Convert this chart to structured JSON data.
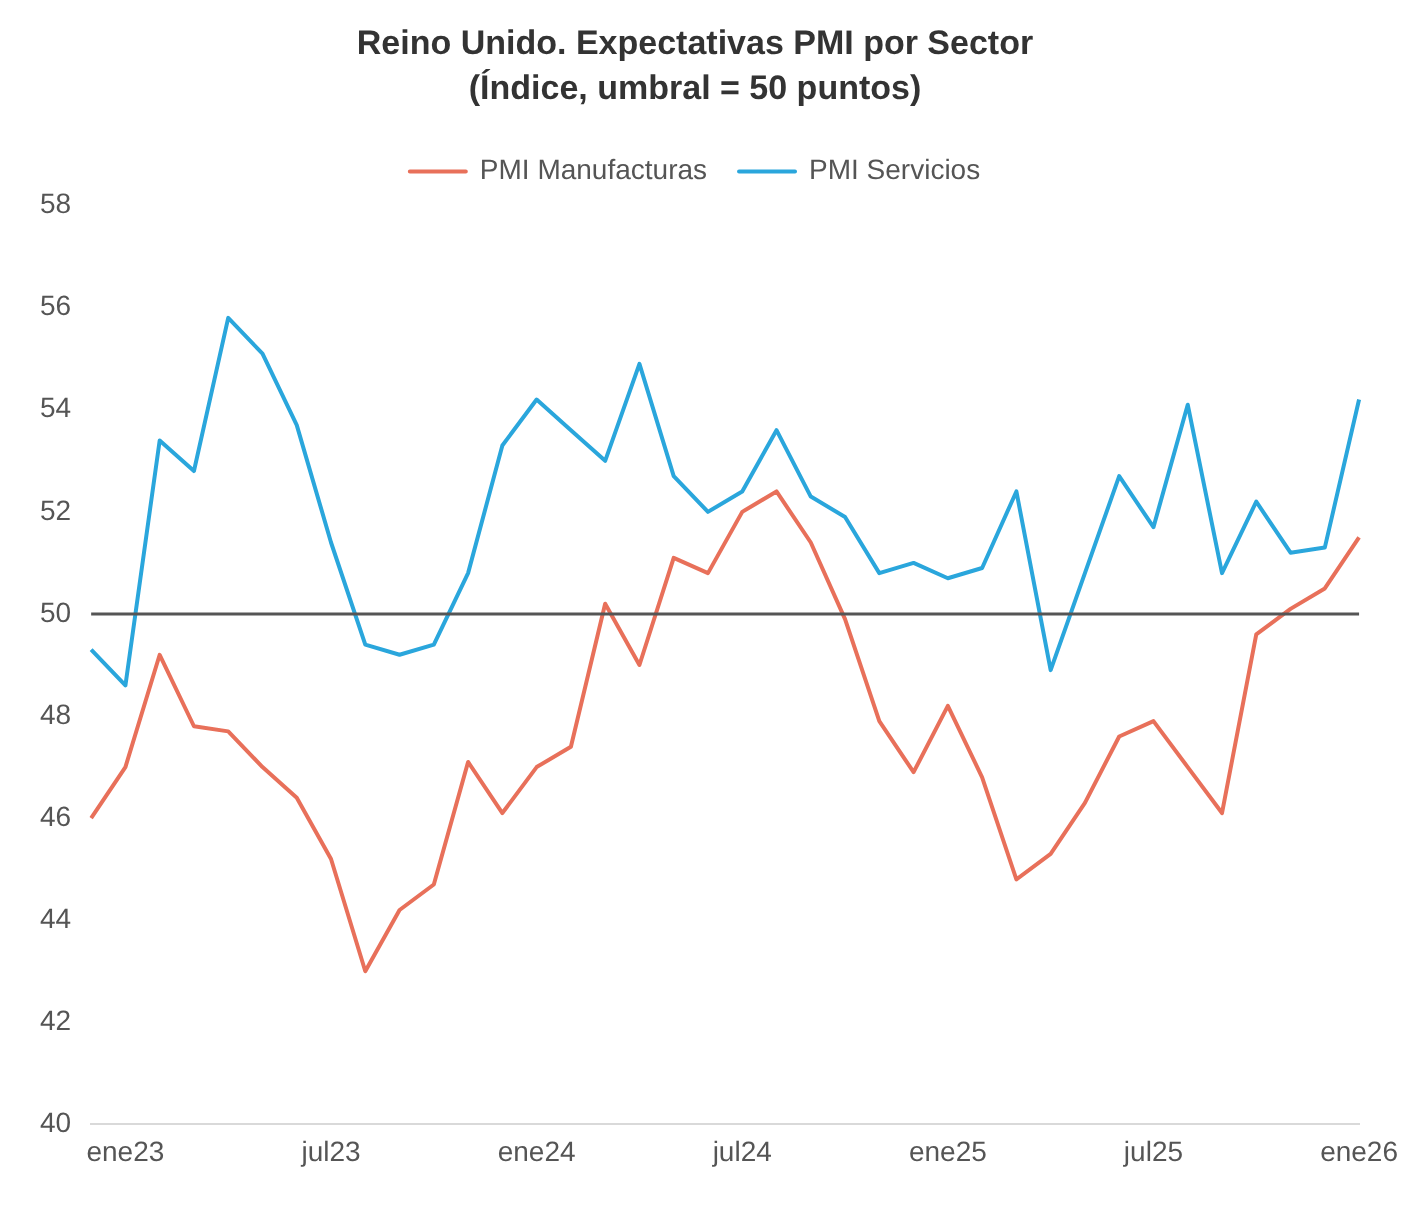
{
  "chart_data": {
    "type": "line",
    "title": "Reino Unido. Expectativas PMI por Sector",
    "subtitle": "(Índice, umbral = 50 puntos)",
    "categories": [
      null,
      "ene23",
      null,
      null,
      null,
      null,
      null,
      "jul23",
      null,
      null,
      null,
      null,
      null,
      "ene24",
      null,
      null,
      null,
      null,
      null,
      "jul24",
      null,
      null,
      null,
      null,
      null,
      "ene25",
      null,
      null,
      null,
      null,
      null,
      "jul25",
      null,
      null,
      null,
      null,
      null,
      "ene26"
    ],
    "series": [
      {
        "name": "PMI Manufacturas",
        "color": "#e8705a",
        "values": [
          46.0,
          47.0,
          49.2,
          47.8,
          47.7,
          47.0,
          46.4,
          45.2,
          43.0,
          44.2,
          44.7,
          47.1,
          46.1,
          47.0,
          47.4,
          50.2,
          49.0,
          51.1,
          50.8,
          52.0,
          52.4,
          51.4,
          49.9,
          47.9,
          46.9,
          48.2,
          46.8,
          44.8,
          45.3,
          46.3,
          47.6,
          47.9,
          47.0,
          46.1,
          49.6,
          50.1,
          50.5,
          51.5
        ]
      },
      {
        "name": "PMI Servicios",
        "color": "#2aa6dc",
        "values": [
          49.3,
          48.6,
          53.4,
          52.8,
          55.8,
          55.1,
          53.7,
          51.4,
          49.4,
          49.2,
          49.4,
          50.8,
          53.3,
          54.2,
          53.6,
          53.0,
          54.9,
          52.7,
          52.0,
          52.4,
          53.6,
          52.3,
          51.9,
          50.8,
          51.0,
          50.7,
          50.9,
          52.4,
          48.9,
          50.8,
          52.7,
          51.7,
          54.1,
          50.8,
          52.2,
          51.2,
          51.3,
          54.2
        ]
      }
    ],
    "ylim": [
      40,
      58
    ],
    "yticks": [
      40,
      42,
      44,
      46,
      48,
      50,
      52,
      54,
      56,
      58
    ],
    "ref_lines": [
      {
        "axis": "y",
        "value": 50,
        "color": "#555555"
      }
    ],
    "grid": false,
    "legend": "top",
    "marker": "none",
    "line_style": "solid"
  }
}
